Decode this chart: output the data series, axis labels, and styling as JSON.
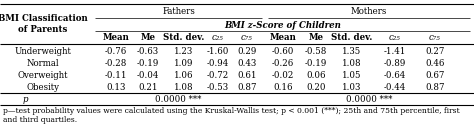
{
  "title_fathers": "Fathers",
  "title_mothers": "Mothers",
  "subtitle": "BMI z-Score of Children",
  "col_header_left": "BMI Classification\nof Parents",
  "col_headers": [
    "Mean",
    "Me",
    "Std. dev.",
    "c₂₅",
    "c₇₅",
    "Mean",
    "Me",
    "Std. dev.",
    "c₂₅",
    "c₇₅"
  ],
  "row_labels": [
    "Underweight",
    "Normal",
    "Overweight",
    "Obesity"
  ],
  "fathers_data": [
    [
      "-0.76",
      "-0.63",
      "1.23",
      "-1.60",
      "0.29"
    ],
    [
      "-0.28",
      "-0.19",
      "1.09",
      "-0.94",
      "0.43"
    ],
    [
      "-0.11",
      "-0.04",
      "1.06",
      "-0.72",
      "0.61"
    ],
    [
      "0.13",
      "0.21",
      "1.08",
      "-0.53",
      "0.87"
    ]
  ],
  "mothers_data": [
    [
      "-0.60",
      "-0.58",
      "1.35",
      "-1.41",
      "0.27"
    ],
    [
      "-0.26",
      "-0.19",
      "1.08",
      "-0.89",
      "0.46"
    ],
    [
      "-0.02",
      "0.06",
      "1.05",
      "-0.64",
      "0.67"
    ],
    [
      "0.16",
      "0.20",
      "1.03",
      "-0.44",
      "0.87"
    ]
  ],
  "p_fathers": "0.0000 ***",
  "p_mothers": "0.0000 ***",
  "footnote1": "p—test probability values were calculated using the Kruskal-Wallis test; p < 0.001 (***); 25th and 75th percentile, first",
  "footnote2": "and third quartiles.",
  "bg_color": "#ffffff",
  "line_color": "#000000",
  "text_color": "#000000",
  "font_size": 6.2,
  "header_font_size": 6.2,
  "footnote_font_size": 5.5
}
